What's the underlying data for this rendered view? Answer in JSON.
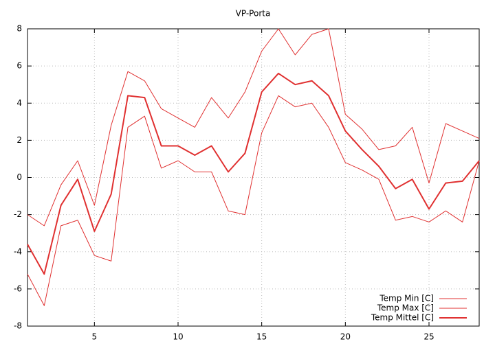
{
  "chart_data": {
    "type": "line",
    "title": "VP-Porta",
    "x": [
      1,
      2,
      3,
      4,
      5,
      6,
      7,
      8,
      9,
      10,
      11,
      12,
      13,
      14,
      15,
      16,
      17,
      18,
      19,
      20,
      21,
      22,
      23,
      24,
      25,
      26,
      27,
      28
    ],
    "series": [
      {
        "name": "Temp Min [C]",
        "color": "#e03030",
        "linewidth": 1,
        "values": [
          -5.2,
          -6.9,
          -2.6,
          -2.3,
          -4.2,
          -4.5,
          2.7,
          3.3,
          0.5,
          0.9,
          0.3,
          0.3,
          -1.8,
          -2.0,
          2.4,
          4.4,
          3.8,
          4.0,
          2.7,
          0.8,
          0.4,
          -0.1,
          -2.3,
          -2.1,
          -2.4,
          -1.8,
          -2.4,
          0.9
        ]
      },
      {
        "name": "Temp Max [C]",
        "color": "#e03030",
        "linewidth": 1,
        "values": [
          -2.0,
          -2.6,
          -0.4,
          0.9,
          -1.5,
          2.8,
          5.7,
          5.2,
          3.7,
          3.2,
          2.7,
          4.3,
          3.2,
          4.6,
          6.8,
          8.0,
          6.6,
          7.7,
          8.0,
          3.4,
          2.6,
          1.5,
          1.7,
          2.7,
          -0.3,
          2.9,
          2.5,
          2.1
        ]
      },
      {
        "name": "Temp Mittel [C]",
        "color": "#e03030",
        "linewidth": 2,
        "values": [
          -3.6,
          -5.2,
          -1.5,
          -0.1,
          -2.9,
          -0.9,
          4.4,
          4.3,
          1.7,
          1.7,
          1.2,
          1.7,
          0.3,
          1.3,
          4.6,
          5.6,
          5.0,
          5.2,
          4.4,
          2.5,
          1.5,
          0.6,
          -0.6,
          -0.1,
          -1.7,
          -0.3,
          -0.2,
          0.9
        ]
      }
    ],
    "xlim": [
      1,
      28
    ],
    "xticks": [
      5,
      10,
      15,
      20,
      25
    ],
    "ylim": [
      -8,
      8
    ],
    "yticks": [
      -8,
      -6,
      -4,
      -2,
      0,
      2,
      4,
      6,
      8
    ],
    "grid": true,
    "legend": "bottom-right"
  }
}
